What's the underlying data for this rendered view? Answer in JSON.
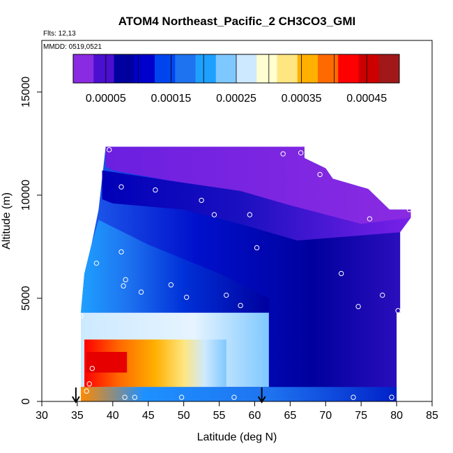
{
  "chart_data": {
    "type": "heatmap",
    "title": "ATOM4 Northeast_Pacific_2 CH3CO3_GMI",
    "annotations": {
      "flights": "Flts: 12,13",
      "dates": "MMDD: 0519,0521"
    },
    "xlabel": "Latitude (deg N)",
    "ylabel": "Altitude (m)",
    "xlim": [
      30,
      85
    ],
    "ylim": [
      0,
      17500
    ],
    "x_ticks": [
      30,
      35,
      40,
      45,
      50,
      55,
      60,
      65,
      70,
      75,
      80,
      85
    ],
    "y_ticks": [
      0,
      5000,
      10000,
      15000
    ],
    "colorbar": {
      "range": [
        0,
        0.0005
      ],
      "ticks": [
        "0.00005",
        "0.00015",
        "0.00025",
        "0.00035",
        "0.00045"
      ],
      "colors": [
        "#8a2be2",
        "#4b0fd0",
        "#00009e",
        "#0000cc",
        "#0044ee",
        "#1e73f0",
        "#1ea0ff",
        "#7fc8ff",
        "#cde9ff",
        "#ffffd0",
        "#ffe680",
        "#ffb000",
        "#ff6a00",
        "#ff0000",
        "#cc0000",
        "#a01818"
      ]
    },
    "arrows_latitude": [
      34.8,
      61.0
    ],
    "obs_points": [
      {
        "lat": 39.5,
        "alt": 12200
      },
      {
        "lat": 64.0,
        "alt": 12000
      },
      {
        "lat": 66.5,
        "alt": 12050
      },
      {
        "lat": 69.2,
        "alt": 11000
      },
      {
        "lat": 41.2,
        "alt": 10400
      },
      {
        "lat": 46.0,
        "alt": 10250
      },
      {
        "lat": 52.5,
        "alt": 9750
      },
      {
        "lat": 54.3,
        "alt": 9050
      },
      {
        "lat": 59.3,
        "alt": 9050
      },
      {
        "lat": 76.2,
        "alt": 8850
      },
      {
        "lat": 81.8,
        "alt": 9300
      },
      {
        "lat": 60.3,
        "alt": 7450
      },
      {
        "lat": 41.2,
        "alt": 7250
      },
      {
        "lat": 37.7,
        "alt": 6700
      },
      {
        "lat": 72.2,
        "alt": 6200
      },
      {
        "lat": 41.8,
        "alt": 5900
      },
      {
        "lat": 41.5,
        "alt": 5600
      },
      {
        "lat": 48.2,
        "alt": 5650
      },
      {
        "lat": 44.0,
        "alt": 5300
      },
      {
        "lat": 50.4,
        "alt": 5050
      },
      {
        "lat": 56.0,
        "alt": 5150
      },
      {
        "lat": 78.0,
        "alt": 5150
      },
      {
        "lat": 58.0,
        "alt": 4650
      },
      {
        "lat": 74.6,
        "alt": 4600
      },
      {
        "lat": 80.2,
        "alt": 4400
      },
      {
        "lat": 35.5,
        "alt": 4150
      },
      {
        "lat": 37.1,
        "alt": 1600
      },
      {
        "lat": 36.7,
        "alt": 850
      },
      {
        "lat": 36.3,
        "alt": 500
      },
      {
        "lat": 41.7,
        "alt": 200
      },
      {
        "lat": 43.1,
        "alt": 200
      },
      {
        "lat": 49.7,
        "alt": 200
      },
      {
        "lat": 57.1,
        "alt": 200
      },
      {
        "lat": 73.9,
        "alt": 200
      },
      {
        "lat": 79.3,
        "alt": 200
      }
    ]
  }
}
